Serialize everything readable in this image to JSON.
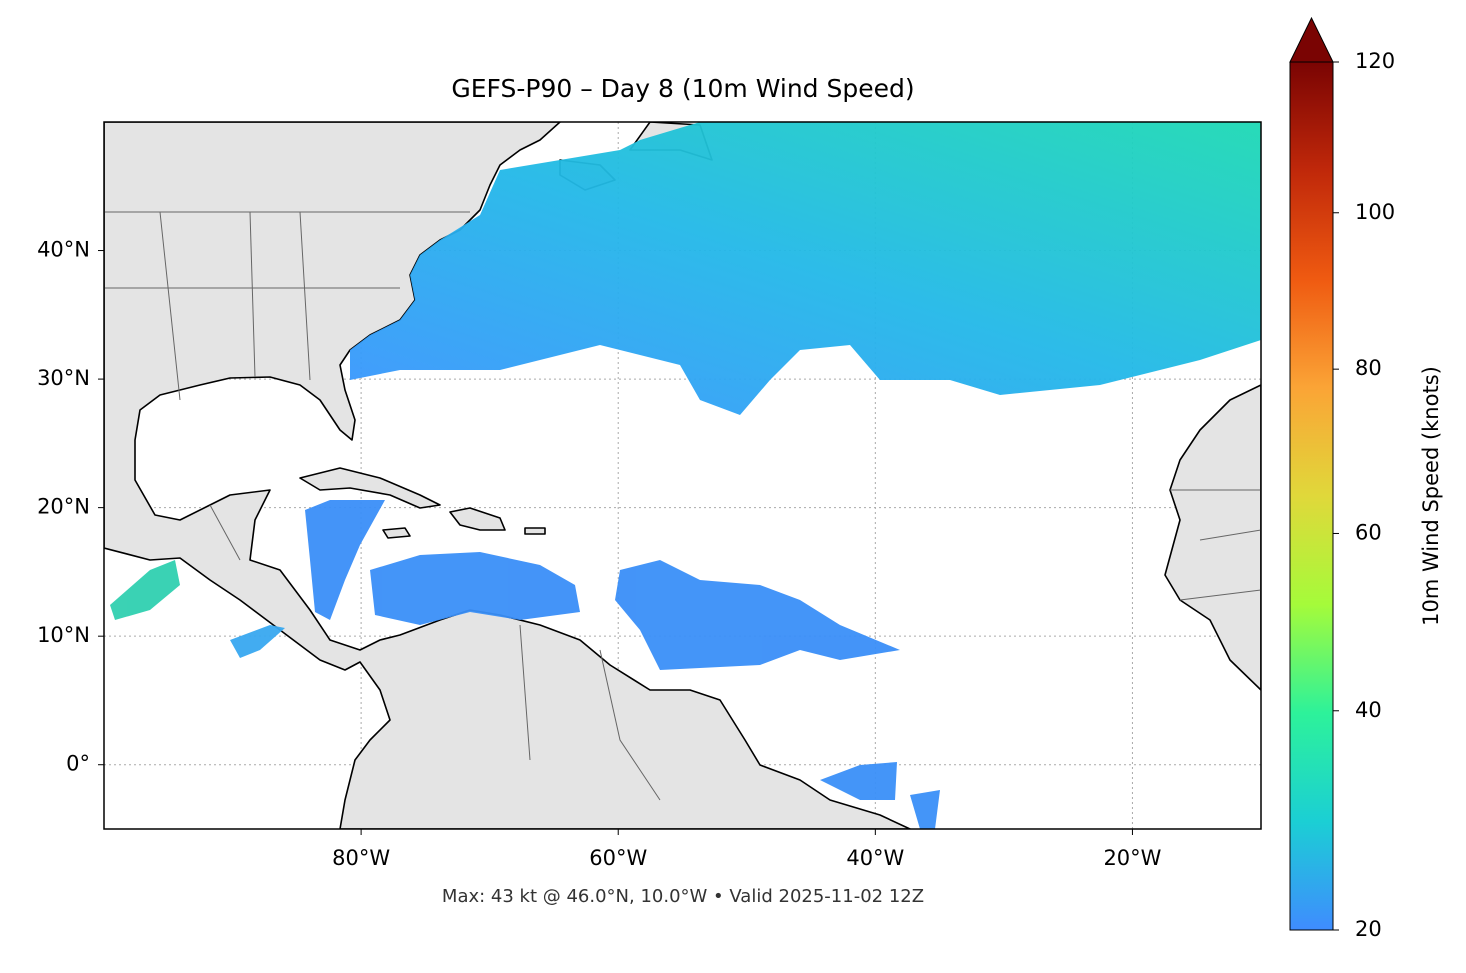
{
  "chart_data": {
    "type": "map",
    "title": "GEFS-P90 – Day 8 (10m Wind Speed)",
    "xlim": [
      -100,
      -10
    ],
    "ylim": [
      -5,
      50
    ],
    "xticks": [
      {
        "value": -80,
        "label": "80°W"
      },
      {
        "value": -60,
        "label": "60°W"
      },
      {
        "value": -40,
        "label": "40°W"
      },
      {
        "value": -20,
        "label": "20°W"
      }
    ],
    "yticks": [
      {
        "value": 0,
        "label": "0°"
      },
      {
        "value": 10,
        "label": "10°N"
      },
      {
        "value": 20,
        "label": "20°N"
      },
      {
        "value": 30,
        "label": "30°N"
      },
      {
        "value": 40,
        "label": "40°N"
      }
    ],
    "grid": true,
    "colorbar": {
      "label": "10m Wind Speed (knots)",
      "lim": [
        20,
        120
      ],
      "ticks": [
        20,
        40,
        60,
        80,
        100,
        120
      ],
      "extend": "max",
      "colors": [
        "#3f8cff",
        "#1bcfd4",
        "#2df29a",
        "#a5fb3a",
        "#e0d83a",
        "#fba436",
        "#ef5a11",
        "#c0280a",
        "#7a0403"
      ]
    },
    "annotation": "Max: 43 kt @ 46.0°N, 10.0°W • Valid 2025-11-02 12Z"
  }
}
